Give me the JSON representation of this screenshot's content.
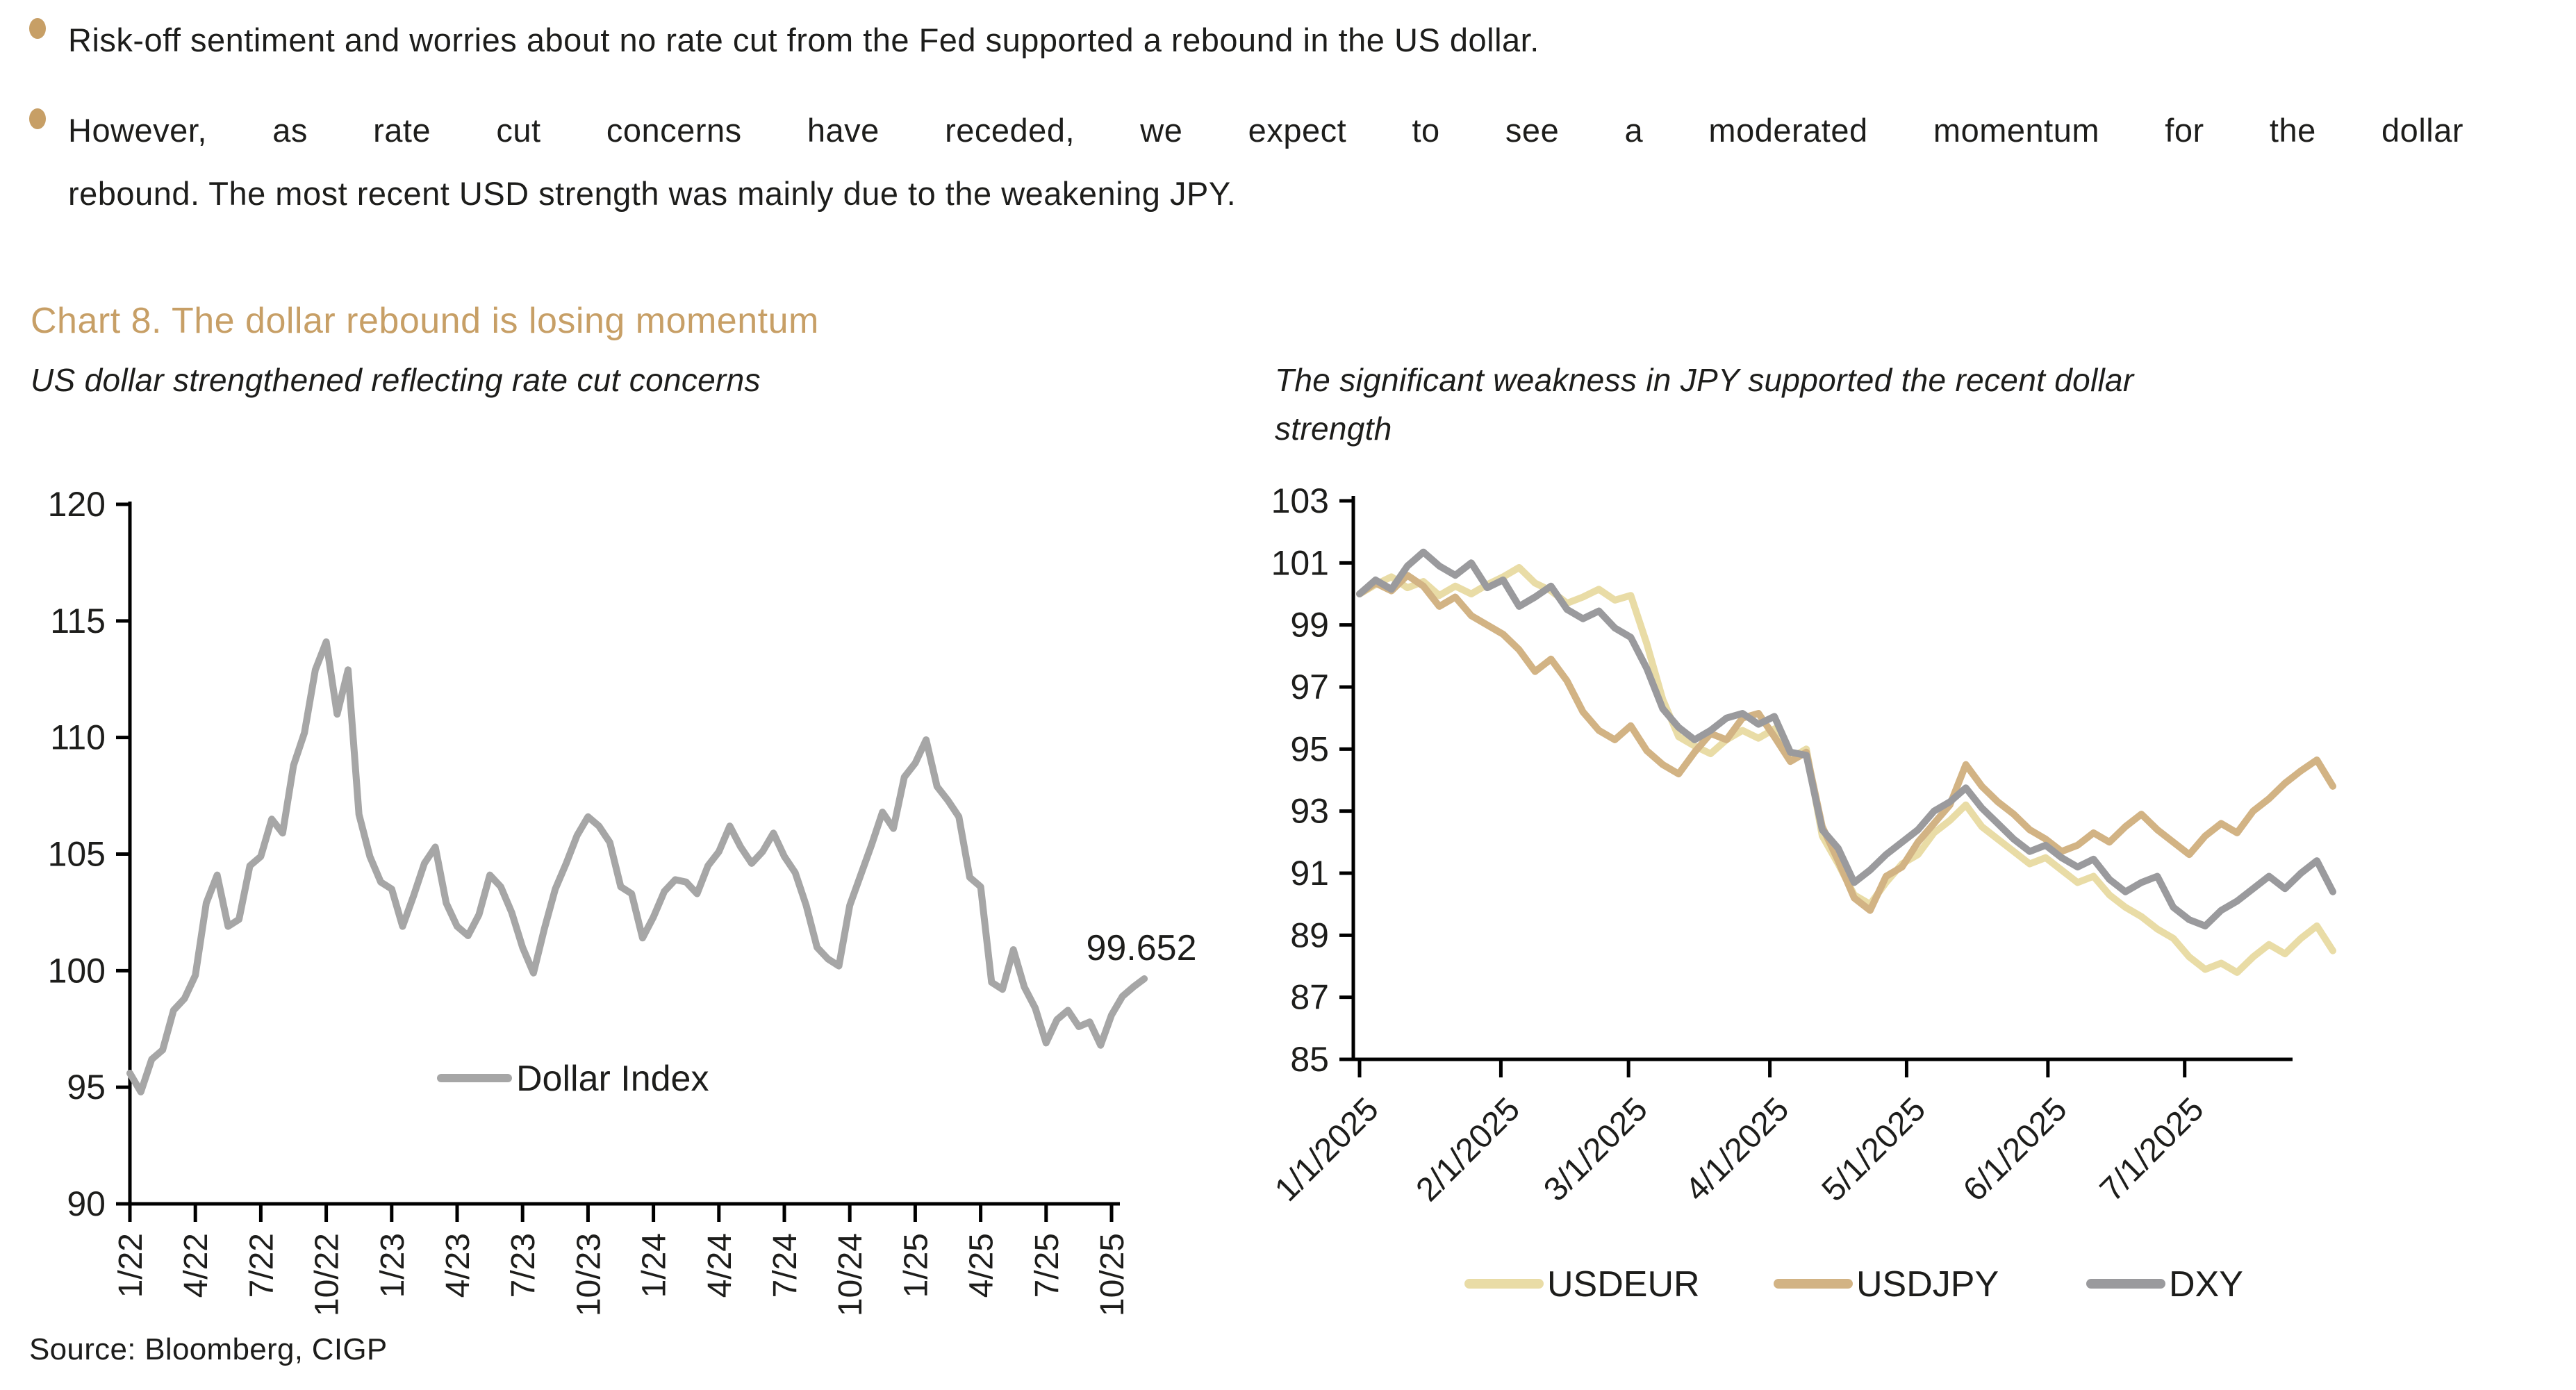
{
  "page": {
    "bullets": [
      {
        "lines": [
          "Risk-off sentiment and worries about no rate cut from the Fed supported a rebound in the US dollar."
        ]
      },
      {
        "lines": [
          "However, as rate cut concerns have receded, we expect to see a moderated momentum for the dollar",
          "rebound. The most recent USD strength was mainly due to the weakening JPY."
        ]
      }
    ],
    "chart_title": "Chart 8. The dollar rebound is losing momentum",
    "source": "Source: Bloomberg, CIGP"
  },
  "colors": {
    "accent_gold": "#C79F66",
    "text": "#1D1D1B",
    "axis": "#000000",
    "dollar_index_gray": "#A6A6A6",
    "usdeur": "#E9DCA6",
    "usdjpy": "#D2B384",
    "dxy": "#9A9A9D"
  },
  "chart_data": [
    {
      "type": "line",
      "title": "US dollar strengthened reflecting rate cut concerns",
      "subtitle_lines": [
        "US dollar strengthened reflecting rate cut concerns"
      ],
      "xlabel": "",
      "ylabel": "",
      "ylim": [
        90,
        120
      ],
      "y_tick_step": 5,
      "y_tick_labels": [
        "120",
        "115",
        "110",
        "105",
        "100",
        "95",
        "90"
      ],
      "grid": false,
      "legend_position": "inside-center",
      "x_tick_labels": [
        "1/22",
        "4/22",
        "7/22",
        "10/22",
        "1/23",
        "4/23",
        "7/23",
        "10/23",
        "1/24",
        "4/24",
        "7/24",
        "10/24",
        "1/25",
        "4/25",
        "7/25",
        "10/25"
      ],
      "x_ticks_every_points": 6,
      "point_interval": "semi-monthly Jan 2022 - Nov 2025",
      "annotation": {
        "text": "99.652",
        "value": 99.652
      },
      "series": [
        {
          "name": "Dollar Index",
          "color_key": "dollar_index_gray",
          "values": [
            95.6,
            94.8,
            96.2,
            96.6,
            98.3,
            98.8,
            99.8,
            102.9,
            104.1,
            101.9,
            102.2,
            104.5,
            104.9,
            106.5,
            105.9,
            108.8,
            110.2,
            112.9,
            114.1,
            111.0,
            112.9,
            106.7,
            104.9,
            103.8,
            103.5,
            101.9,
            103.2,
            104.6,
            105.3,
            102.9,
            101.9,
            101.5,
            102.4,
            104.1,
            103.6,
            102.5,
            101.0,
            99.9,
            101.8,
            103.5,
            104.6,
            105.8,
            106.6,
            106.2,
            105.5,
            103.6,
            103.3,
            101.4,
            102.3,
            103.4,
            103.9,
            103.8,
            103.3,
            104.5,
            105.1,
            106.2,
            105.3,
            104.6,
            105.1,
            105.9,
            104.9,
            104.2,
            102.8,
            101.0,
            100.5,
            100.2,
            102.8,
            104.1,
            105.4,
            106.8,
            106.1,
            108.3,
            108.9,
            109.9,
            107.9,
            107.3,
            106.6,
            104.0,
            103.6,
            99.5,
            99.2,
            100.9,
            99.3,
            98.4,
            96.9,
            97.9,
            98.3,
            97.6,
            97.8,
            96.8,
            98.1,
            98.9,
            99.3,
            99.652
          ]
        }
      ]
    },
    {
      "type": "line",
      "title": "The significant weakness in JPY supported the recent dollar strength",
      "subtitle_lines": [
        "The significant weakness in JPY supported the recent dollar",
        "strength"
      ],
      "xlabel": "",
      "ylabel": "",
      "ylim": [
        85,
        103
      ],
      "y_tick_step": 2,
      "y_tick_labels": [
        "103",
        "101",
        "99",
        "97",
        "95",
        "93",
        "91",
        "89",
        "87",
        "85"
      ],
      "grid": false,
      "legend_position": "bottom-center",
      "x_tick_labels": [
        "1/1/2025",
        "2/1/2025",
        "3/1/2025",
        "4/1/2025",
        "5/1/2025",
        "6/1/2025",
        "7/1/2025"
      ],
      "x_tick_days": [
        0,
        31,
        59,
        90,
        120,
        151,
        181
      ],
      "point_interval_days": 3.5,
      "index_base": "1/1/2025 = 100",
      "series": [
        {
          "name": "USDEUR",
          "color_key": "usdeur",
          "values": [
            100.0,
            100.3,
            100.55,
            100.2,
            100.4,
            99.95,
            100.25,
            100.0,
            100.3,
            100.55,
            100.85,
            100.35,
            100.1,
            99.7,
            99.9,
            100.15,
            99.8,
            99.95,
            98.4,
            96.6,
            95.4,
            95.1,
            94.85,
            95.3,
            95.6,
            95.35,
            95.65,
            94.7,
            95.0,
            92.2,
            91.3,
            90.3,
            90.0,
            90.7,
            91.3,
            91.6,
            92.3,
            92.7,
            93.2,
            92.5,
            92.1,
            91.7,
            91.3,
            91.5,
            91.1,
            90.7,
            90.9,
            90.3,
            89.9,
            89.6,
            89.2,
            88.9,
            88.3,
            87.9,
            88.1,
            87.8,
            88.3,
            88.7,
            88.4,
            88.9,
            89.3,
            88.5
          ]
        },
        {
          "name": "USDJPY",
          "color_key": "usdjpy",
          "values": [
            100.0,
            100.35,
            100.1,
            100.6,
            100.25,
            99.6,
            99.9,
            99.3,
            99.0,
            98.7,
            98.2,
            97.5,
            97.9,
            97.2,
            96.2,
            95.6,
            95.3,
            95.75,
            94.95,
            94.5,
            94.2,
            94.9,
            95.5,
            95.3,
            96.0,
            96.15,
            95.4,
            94.6,
            94.9,
            92.5,
            91.4,
            90.2,
            89.8,
            90.9,
            91.2,
            92.0,
            92.6,
            93.2,
            94.5,
            93.8,
            93.3,
            92.9,
            92.4,
            92.1,
            91.7,
            91.9,
            92.3,
            92.0,
            92.5,
            92.9,
            92.4,
            92.0,
            91.6,
            92.2,
            92.6,
            92.3,
            93.0,
            93.4,
            93.9,
            94.3,
            94.65,
            93.8
          ]
        },
        {
          "name": "DXY",
          "color_key": "dxy",
          "values": [
            100.0,
            100.45,
            100.15,
            100.9,
            101.35,
            100.9,
            100.6,
            101.0,
            100.2,
            100.45,
            99.6,
            99.9,
            100.25,
            99.5,
            99.2,
            99.45,
            98.9,
            98.6,
            97.6,
            96.3,
            95.7,
            95.3,
            95.6,
            96.0,
            96.15,
            95.8,
            96.05,
            94.9,
            94.8,
            92.4,
            91.8,
            90.7,
            91.1,
            91.6,
            92.0,
            92.4,
            93.0,
            93.3,
            93.75,
            93.1,
            92.6,
            92.1,
            91.7,
            91.9,
            91.5,
            91.2,
            91.45,
            90.8,
            90.4,
            90.7,
            90.9,
            89.9,
            89.5,
            89.3,
            89.8,
            90.1,
            90.5,
            90.9,
            90.5,
            91.0,
            91.4,
            90.4
          ]
        }
      ]
    }
  ]
}
